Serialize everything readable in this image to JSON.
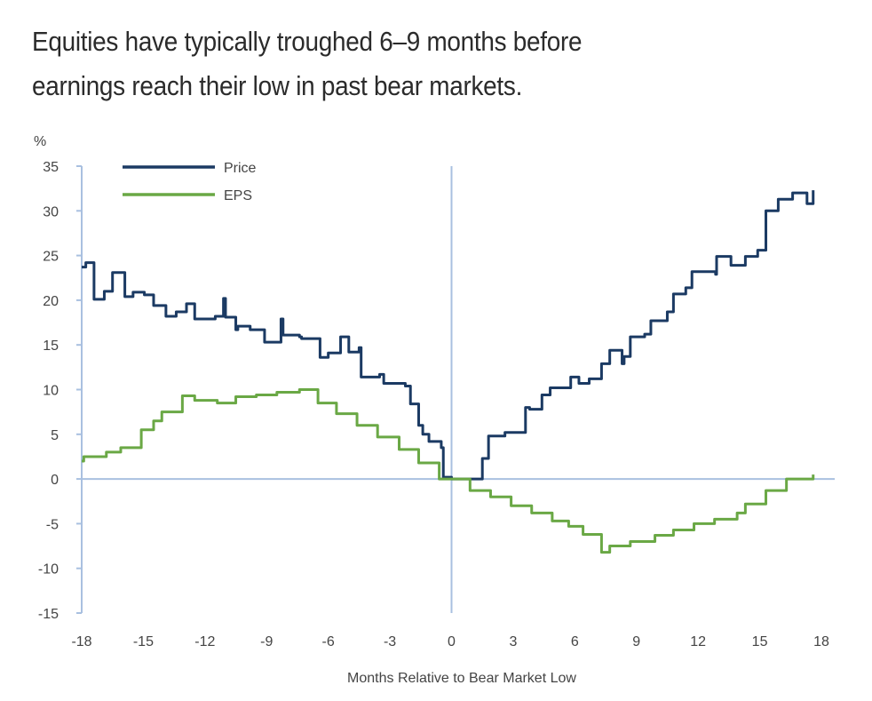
{
  "title_lines": [
    "Equities have typically troughed 6–9 months before",
    "earnings reach their low in past bear markets."
  ],
  "chart_data": {
    "type": "line",
    "title": "Equities have typically troughed 6–9 months before earnings reach their low in past bear markets.",
    "xlabel": "Months Relative to Bear Market Low",
    "ylabel": "%",
    "xlim": [
      -18,
      18
    ],
    "ylim": [
      -15,
      35
    ],
    "xticks": [
      -18,
      -15,
      -12,
      -9,
      -6,
      -3,
      0,
      3,
      6,
      9,
      12,
      15,
      18
    ],
    "yticks": [
      35,
      30,
      25,
      20,
      15,
      10,
      5,
      0,
      -5,
      -10,
      -15
    ],
    "grid": false,
    "legend": "top-left",
    "step": true,
    "colors": {
      "Price": "#1b3a63",
      "EPS": "#6aa845",
      "axis": "#a9c0e0"
    },
    "series": [
      {
        "name": "Price",
        "points": [
          [
            -18,
            23.7
          ],
          [
            -17.8,
            24.2
          ],
          [
            -17.4,
            20.1
          ],
          [
            -16.9,
            21
          ],
          [
            -16.5,
            23.1
          ],
          [
            -15.9,
            20.4
          ],
          [
            -15.5,
            20.9
          ],
          [
            -14.95,
            20.6
          ],
          [
            -14.5,
            19.4
          ],
          [
            -13.9,
            18.2
          ],
          [
            -13.4,
            18.7
          ],
          [
            -12.9,
            19.6
          ],
          [
            -12.5,
            17.9
          ],
          [
            -11.5,
            18.2
          ],
          [
            -11.1,
            20.2
          ],
          [
            -11.0,
            18.1
          ],
          [
            -10.5,
            16.7
          ],
          [
            -10.4,
            17.1
          ],
          [
            -9.8,
            16.7
          ],
          [
            -9.1,
            15.3
          ],
          [
            -8.3,
            17.9
          ],
          [
            -8.2,
            16.1
          ],
          [
            -7.4,
            15.9
          ],
          [
            -7.3,
            15.7
          ],
          [
            -6.4,
            13.6
          ],
          [
            -6.0,
            14.1
          ],
          [
            -5.4,
            15.9
          ],
          [
            -5.0,
            14.2
          ],
          [
            -4.5,
            14.7
          ],
          [
            -4.4,
            11.4
          ],
          [
            -3.5,
            11.7
          ],
          [
            -3.3,
            10.7
          ],
          [
            -2.25,
            10.4
          ],
          [
            -2.0,
            8.4
          ],
          [
            -1.6,
            6.0
          ],
          [
            -1.4,
            5.0
          ],
          [
            -1.1,
            4.2
          ],
          [
            -0.5,
            3.5
          ],
          [
            -0.4,
            0.2
          ],
          [
            0,
            0
          ],
          [
            1.4,
            0
          ],
          [
            1.5,
            2.3
          ],
          [
            1.8,
            4.8
          ],
          [
            2.6,
            5.2
          ],
          [
            3.6,
            8.0
          ],
          [
            3.8,
            7.8
          ],
          [
            4.4,
            9.4
          ],
          [
            4.8,
            10.2
          ],
          [
            5.8,
            11.4
          ],
          [
            6.2,
            10.7
          ],
          [
            6.7,
            11.2
          ],
          [
            7.3,
            12.9
          ],
          [
            7.7,
            14.4
          ],
          [
            8.3,
            12.9
          ],
          [
            8.4,
            13.7
          ],
          [
            8.7,
            15.9
          ],
          [
            9.4,
            16.2
          ],
          [
            9.7,
            17.7
          ],
          [
            10.5,
            18.7
          ],
          [
            10.8,
            20.7
          ],
          [
            11.4,
            21.4
          ],
          [
            11.7,
            23.2
          ],
          [
            12.85,
            22.9
          ],
          [
            12.9,
            24.9
          ],
          [
            13.6,
            23.9
          ],
          [
            14.3,
            24.9
          ],
          [
            14.9,
            25.6
          ],
          [
            15.3,
            30.0
          ],
          [
            15.9,
            31.3
          ],
          [
            16.6,
            32.0
          ],
          [
            17.3,
            30.8
          ],
          [
            17.6,
            32.3
          ]
        ]
      },
      {
        "name": "EPS",
        "points": [
          [
            -18,
            2.0
          ],
          [
            -17.9,
            2.5
          ],
          [
            -16.8,
            3.0
          ],
          [
            -16.1,
            3.5
          ],
          [
            -15.1,
            5.5
          ],
          [
            -14.5,
            6.5
          ],
          [
            -14.1,
            7.5
          ],
          [
            -13.1,
            9.3
          ],
          [
            -12.5,
            8.8
          ],
          [
            -11.4,
            8.5
          ],
          [
            -10.5,
            9.2
          ],
          [
            -9.5,
            9.4
          ],
          [
            -8.5,
            9.7
          ],
          [
            -7.4,
            10.0
          ],
          [
            -6.5,
            8.5
          ],
          [
            -5.6,
            7.3
          ],
          [
            -4.6,
            6.0
          ],
          [
            -3.6,
            4.7
          ],
          [
            -2.55,
            3.3
          ],
          [
            -1.6,
            1.8
          ],
          [
            -0.6,
            0
          ],
          [
            0.8,
            0
          ],
          [
            0.9,
            -1.3
          ],
          [
            1.9,
            -2.0
          ],
          [
            2.9,
            -3.0
          ],
          [
            3.9,
            -3.8
          ],
          [
            4.9,
            -4.7
          ],
          [
            5.7,
            -5.3
          ],
          [
            6.4,
            -6.2
          ],
          [
            7.3,
            -8.2
          ],
          [
            7.7,
            -7.5
          ],
          [
            8.7,
            -7.0
          ],
          [
            9.9,
            -6.3
          ],
          [
            10.8,
            -5.7
          ],
          [
            11.8,
            -5.0
          ],
          [
            12.8,
            -4.5
          ],
          [
            13.9,
            -3.8
          ],
          [
            14.3,
            -2.8
          ],
          [
            15.3,
            -1.3
          ],
          [
            16.3,
            0
          ],
          [
            17.6,
            0.5
          ]
        ]
      }
    ]
  }
}
